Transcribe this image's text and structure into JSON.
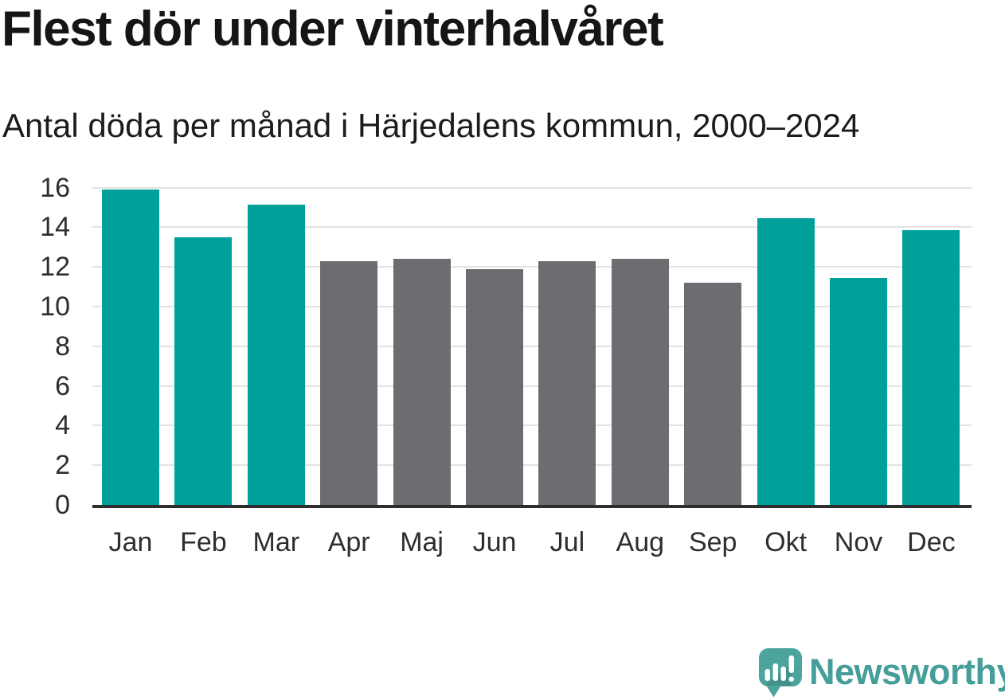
{
  "chart_data": {
    "type": "bar",
    "title": "Flest dör under vinterhalvåret",
    "subtitle": "Antal döda per månad i Härjedalens kommun, 2000–2024",
    "categories": [
      "Jan",
      "Feb",
      "Mar",
      "Apr",
      "Maj",
      "Jun",
      "Jul",
      "Aug",
      "Sep",
      "Okt",
      "Nov",
      "Dec"
    ],
    "values": [
      15.9,
      13.5,
      15.15,
      12.3,
      12.4,
      11.9,
      12.3,
      12.4,
      11.2,
      14.45,
      11.45,
      13.85
    ],
    "highlighted": [
      true,
      true,
      true,
      false,
      false,
      false,
      false,
      false,
      false,
      true,
      true,
      true
    ],
    "colors": {
      "highlight": "#00a19a",
      "muted": "#6c6c71"
    },
    "xlabel": "",
    "ylabel": "",
    "ylim": [
      0,
      16
    ],
    "yticks": [
      0,
      2,
      4,
      6,
      8,
      10,
      12,
      14,
      16
    ],
    "grid": true,
    "legend": "none"
  },
  "footer": {
    "brand": "Newsworthy",
    "brand_color": "#459e99",
    "logo_icon": "newsworthy-speech-bubble-bar-chart-icon"
  }
}
